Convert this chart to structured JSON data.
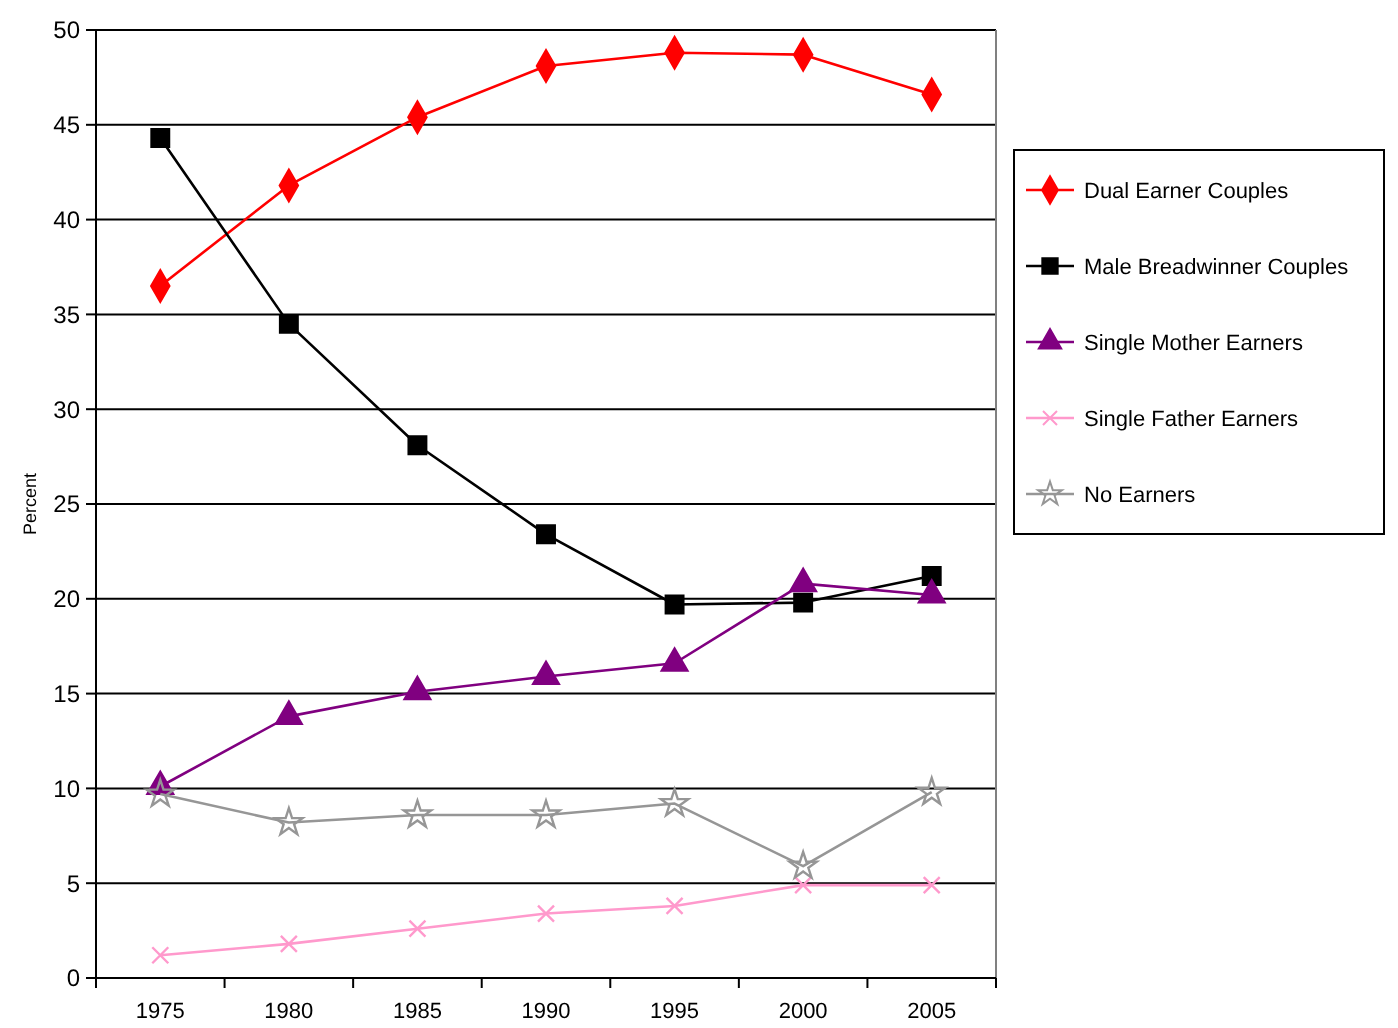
{
  "chart_data": {
    "type": "line",
    "ylabel": "Percent",
    "categories": [
      "1975",
      "1980",
      "1985",
      "1990",
      "1995",
      "2000",
      "2005"
    ],
    "ylim": [
      0,
      50
    ],
    "yticks": [
      0,
      5,
      10,
      15,
      20,
      25,
      30,
      35,
      40,
      45,
      50
    ],
    "grid": "y",
    "legend": "right",
    "series": [
      {
        "name": "Dual Earner Couples",
        "color": "#ff0000",
        "marker": "diamond",
        "values": [
          36.5,
          41.8,
          45.4,
          48.1,
          48.8,
          48.7,
          46.6
        ]
      },
      {
        "name": "Male Breadwinner Couples",
        "color": "#000000",
        "marker": "square",
        "values": [
          44.3,
          34.5,
          28.1,
          23.4,
          19.7,
          19.8,
          21.2
        ]
      },
      {
        "name": "Single Mother Earners",
        "color": "#800080",
        "marker": "triangle",
        "values": [
          10.1,
          13.8,
          15.1,
          15.9,
          16.6,
          20.8,
          20.2
        ]
      },
      {
        "name": "Single Father Earners",
        "color": "#ff99cc",
        "marker": "cross",
        "values": [
          1.2,
          1.8,
          2.6,
          3.4,
          3.8,
          4.9,
          4.9
        ]
      },
      {
        "name": "No Earners",
        "color": "#969696",
        "marker": "star",
        "values": [
          9.7,
          8.2,
          8.6,
          8.6,
          9.2,
          5.9,
          9.8
        ]
      }
    ]
  }
}
